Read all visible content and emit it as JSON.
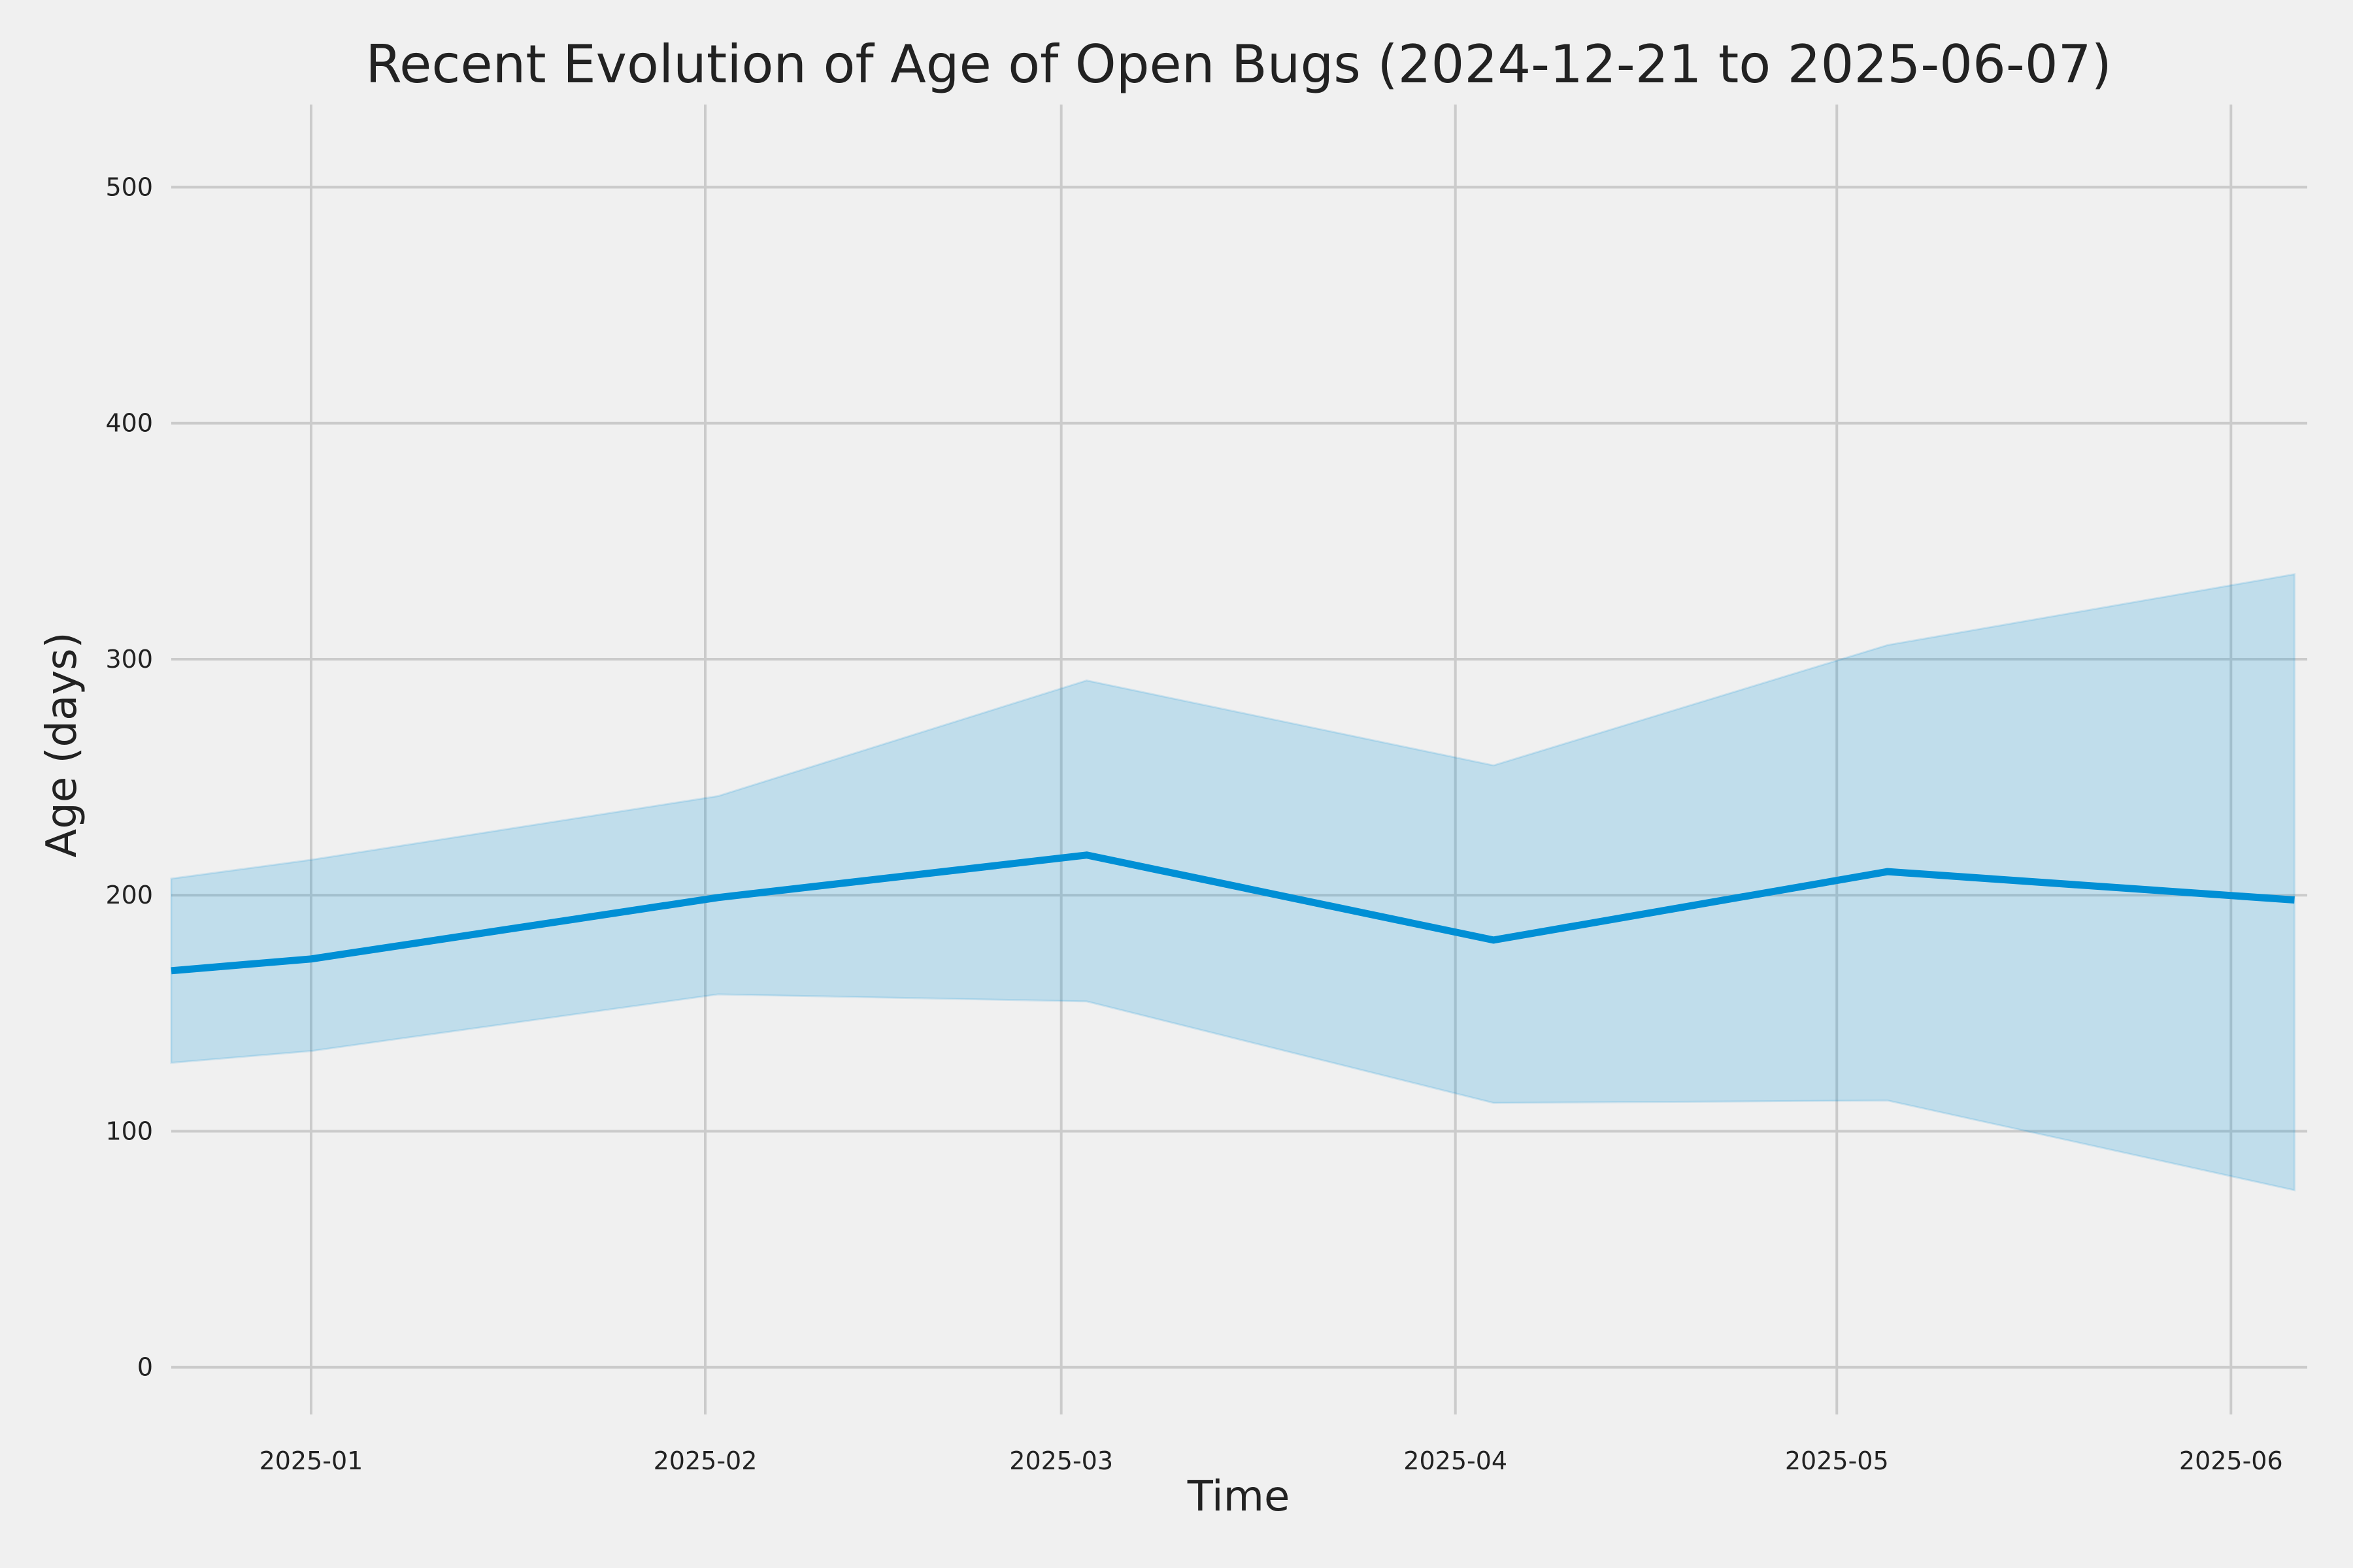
{
  "chart_data": {
    "type": "line",
    "title": "Recent Evolution of Age of Open Bugs (2024-12-21 to 2025-06-07)",
    "xlabel": "Time",
    "ylabel": "Age (days)",
    "x": [
      "2024-12-21",
      "2025-01-01",
      "2025-02-02",
      "2025-03-03",
      "2025-04-04",
      "2025-05-05",
      "2025-06-06"
    ],
    "xlim": [
      "2024-12-21",
      "2025-06-07"
    ],
    "ylim": [
      -20,
      535
    ],
    "x_ticks": [
      "2025-01-01",
      "2025-02-01",
      "2025-03-01",
      "2025-04-01",
      "2025-05-01",
      "2025-06-01"
    ],
    "x_tick_labels": [
      "2025-01",
      "2025-02",
      "2025-03",
      "2025-04",
      "2025-05",
      "2025-06"
    ],
    "y_ticks": [
      0,
      100,
      200,
      300,
      400,
      500
    ],
    "grid": true,
    "series": [
      {
        "values": [
          168,
          173,
          199,
          217,
          181,
          210,
          198
        ],
        "lower": [
          129,
          134,
          158,
          155,
          112,
          113,
          75
        ],
        "upper": [
          207,
          215,
          242,
          291,
          255,
          306,
          336
        ]
      }
    ],
    "colors": {
      "line": "#008fd5",
      "band": "#008fd5",
      "background": "#f0f0f0",
      "grid": "#cbcbcb",
      "text": "#222222"
    }
  }
}
